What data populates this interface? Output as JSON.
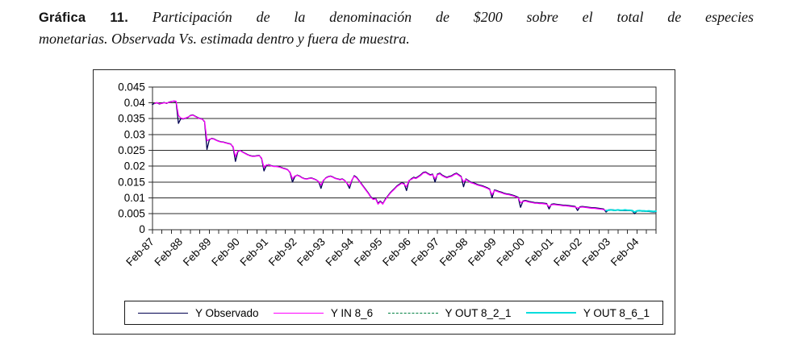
{
  "caption": {
    "prefix": "Gráfica 11.",
    "line1": "Participación de la denominación de $200 sobre el total de especies",
    "line2": "monetarias. Observada Vs. estimada dentro y fuera de muestra."
  },
  "chart_data": {
    "type": "line",
    "title": "Participación de la denominación de $200 sobre el total de especies monetarias. Observada Vs. estimada dentro y fuera de muestra.",
    "xlabel": "",
    "ylabel": "",
    "ylim": [
      0,
      0.045
    ],
    "grid": "horizontal",
    "legend_position": "bottom",
    "x_unit": "monthly, Feb-1987 to Oct-2004",
    "n_months": 213,
    "y_tick_labels": [
      "0.045",
      "0.04",
      "0.035",
      "0.03",
      "0.025",
      "0.02",
      "0.015",
      "0.01",
      "0.005",
      "0"
    ],
    "x_tick_labels": [
      "Feb-87",
      "Feb-88",
      "Feb-89",
      "Feb-90",
      "Feb-91",
      "Feb-92",
      "Feb-93",
      "Feb-94",
      "Feb-95",
      "Feb-96",
      "Feb-97",
      "Feb-98",
      "Feb-99",
      "Feb-00",
      "Feb-01",
      "Feb-02",
      "Feb-03",
      "Feb-04"
    ],
    "x_tick_month_indices": [
      0,
      12,
      24,
      36,
      48,
      60,
      72,
      84,
      96,
      108,
      120,
      132,
      144,
      156,
      168,
      180,
      192,
      204
    ],
    "minor_tick_every_months": 4,
    "series": [
      {
        "name": "Y Observado",
        "color": "#000050",
        "dash": null,
        "width": 1.3,
        "legend_weight": 1.5,
        "start_index": 0,
        "values": [
          0.0395,
          0.0398,
          0.04,
          0.0396,
          0.0399,
          0.0401,
          0.0398,
          0.0402,
          0.0404,
          0.0405,
          0.0403,
          0.0335,
          0.035,
          0.0349,
          0.0351,
          0.0354,
          0.036,
          0.0362,
          0.0358,
          0.0354,
          0.0351,
          0.0349,
          0.034,
          0.0253,
          0.0283,
          0.0288,
          0.0286,
          0.0282,
          0.0279,
          0.0277,
          0.0276,
          0.0274,
          0.0272,
          0.027,
          0.026,
          0.0215,
          0.0246,
          0.025,
          0.0245,
          0.0241,
          0.0237,
          0.0234,
          0.0232,
          0.0232,
          0.0233,
          0.0234,
          0.0224,
          0.0185,
          0.0202,
          0.0205,
          0.0202,
          0.02,
          0.02,
          0.0199,
          0.0197,
          0.0194,
          0.0192,
          0.0189,
          0.0179,
          0.015,
          0.0167,
          0.0172,
          0.0169,
          0.0164,
          0.0161,
          0.016,
          0.0162,
          0.0163,
          0.016,
          0.0157,
          0.0151,
          0.013,
          0.0154,
          0.0163,
          0.0167,
          0.0169,
          0.0166,
          0.0162,
          0.016,
          0.0158,
          0.016,
          0.0155,
          0.0145,
          0.013,
          0.0155,
          0.017,
          0.0165,
          0.0155,
          0.0145,
          0.0135,
          0.0125,
          0.0115,
          0.0103,
          0.0097,
          0.0099,
          0.0083,
          0.009,
          0.0082,
          0.0095,
          0.0105,
          0.0115,
          0.0123,
          0.013,
          0.0138,
          0.0143,
          0.0148,
          0.0145,
          0.0123,
          0.0153,
          0.016,
          0.0165,
          0.0163,
          0.0168,
          0.0173,
          0.018,
          0.0182,
          0.0177,
          0.0173,
          0.0175,
          0.015,
          0.0175,
          0.0178,
          0.0172,
          0.0168,
          0.0165,
          0.0168,
          0.017,
          0.0175,
          0.0178,
          0.0173,
          0.0168,
          0.0135,
          0.016,
          0.0155,
          0.015,
          0.0148,
          0.0145,
          0.0142,
          0.014,
          0.0138,
          0.0135,
          0.0132,
          0.0128,
          0.01,
          0.0125,
          0.0123,
          0.012,
          0.0118,
          0.0115,
          0.0113,
          0.0112,
          0.011,
          0.0108,
          0.0105,
          0.0102,
          0.007,
          0.009,
          0.0092,
          0.009,
          0.0088,
          0.0087,
          0.0085,
          0.0085,
          0.0084,
          0.0084,
          0.0083,
          0.0082,
          0.0065,
          0.008,
          0.0081,
          0.008,
          0.0079,
          0.0078,
          0.0077,
          0.0077,
          0.0076,
          0.0075,
          0.0074,
          0.0073,
          0.006,
          0.0072,
          0.0073,
          0.0072,
          0.0071,
          0.007,
          0.0069,
          0.0069,
          0.0068,
          0.0067,
          0.0066,
          0.0065,
          0.0055,
          0.0062,
          0.0063,
          0.0062,
          0.0061,
          0.0061,
          0.006,
          0.006,
          0.006,
          0.006,
          0.006,
          0.0059,
          0.005,
          0.0058,
          0.0059,
          0.0058,
          0.0058,
          0.0057,
          0.0057,
          0.0056,
          0.0055,
          0.0056
        ]
      },
      {
        "name": "Y IN 8_6",
        "color": "#FF00FF",
        "dash": null,
        "width": 1.3,
        "legend_weight": 1.5,
        "start_index": 1,
        "values": [
          0.0398,
          0.0401,
          0.0397,
          0.0398,
          0.04,
          0.0399,
          0.0401,
          0.0403,
          0.0406,
          0.0405,
          0.036,
          0.0352,
          0.035,
          0.0352,
          0.0355,
          0.0359,
          0.0361,
          0.0357,
          0.0353,
          0.035,
          0.0348,
          0.0342,
          0.028,
          0.0285,
          0.0287,
          0.0285,
          0.0281,
          0.0278,
          0.0276,
          0.0275,
          0.0273,
          0.0271,
          0.0269,
          0.0262,
          0.023,
          0.0248,
          0.0249,
          0.0244,
          0.024,
          0.0236,
          0.0233,
          0.0231,
          0.0231,
          0.0232,
          0.0233,
          0.0226,
          0.0195,
          0.0204,
          0.0204,
          0.0201,
          0.0199,
          0.0199,
          0.0198,
          0.0196,
          0.0193,
          0.0191,
          0.0188,
          0.0181,
          0.016,
          0.0169,
          0.0171,
          0.0168,
          0.0163,
          0.016,
          0.0159,
          0.0161,
          0.0162,
          0.0159,
          0.0156,
          0.0152,
          0.014,
          0.0156,
          0.0162,
          0.0166,
          0.0168,
          0.0165,
          0.0161,
          0.0159,
          0.0157,
          0.0159,
          0.0154,
          0.0146,
          0.0138,
          0.0157,
          0.0168,
          0.0163,
          0.0153,
          0.0143,
          0.0133,
          0.0123,
          0.0113,
          0.0101,
          0.0095,
          0.0097,
          0.008,
          0.0088,
          0.008,
          0.0093,
          0.0103,
          0.0113,
          0.0121,
          0.0128,
          0.0136,
          0.0141,
          0.0146,
          0.0143,
          0.0135,
          0.0155,
          0.0158,
          0.0163,
          0.0161,
          0.0166,
          0.0171,
          0.0178,
          0.018,
          0.0175,
          0.0171,
          0.0173,
          0.016,
          0.0173,
          0.0176,
          0.017,
          0.0166,
          0.0163,
          0.0166,
          0.0168,
          0.0173,
          0.0176,
          0.0171,
          0.0166,
          0.015,
          0.0158,
          0.0153,
          0.0148,
          0.0146,
          0.0143,
          0.014,
          0.0138,
          0.0136,
          0.0133,
          0.013,
          0.0126,
          0.011,
          0.0123,
          0.0121,
          0.0118,
          0.0116,
          0.0113,
          0.0111,
          0.011,
          0.0108,
          0.0106,
          0.0103,
          0.01,
          0.0085,
          0.0088,
          0.009,
          0.0088,
          0.0086,
          0.0085,
          0.0083,
          0.0083,
          0.0082,
          0.0082,
          0.0081,
          0.008,
          0.0072,
          0.0078,
          0.0079,
          0.0078,
          0.0077,
          0.0076,
          0.0075,
          0.0075,
          0.0074,
          0.0073,
          0.0072,
          0.0071,
          0.0068,
          0.007,
          0.0071,
          0.007,
          0.0069,
          0.0068,
          0.0067,
          0.0067,
          0.0066,
          0.0065,
          0.0064,
          0.0063,
          0.006
        ]
      },
      {
        "name": "Y OUT 8_2_1",
        "color": "#008040",
        "dash": "5,4",
        "width": 1.2,
        "legend_weight": 1.5,
        "start_index": 191,
        "values": [
          0.0059,
          0.006,
          0.0061,
          0.006,
          0.006,
          0.0061,
          0.006,
          0.006,
          0.0061,
          0.006,
          0.006,
          0.0059,
          0.0054,
          0.0058,
          0.0059,
          0.0058,
          0.0058,
          0.0057,
          0.0058,
          0.0057,
          0.0056,
          0.0057
        ]
      },
      {
        "name": "Y OUT 8_6_1",
        "color": "#00DDDD",
        "dash": null,
        "width": 2,
        "legend_weight": 2,
        "start_index": 191,
        "values": [
          0.006,
          0.0061,
          0.0062,
          0.0061,
          0.0061,
          0.0062,
          0.0061,
          0.0061,
          0.0062,
          0.0061,
          0.0061,
          0.006,
          0.0055,
          0.0059,
          0.006,
          0.0059,
          0.0059,
          0.0058,
          0.0059,
          0.0058,
          0.0057,
          0.0058
        ]
      }
    ]
  }
}
